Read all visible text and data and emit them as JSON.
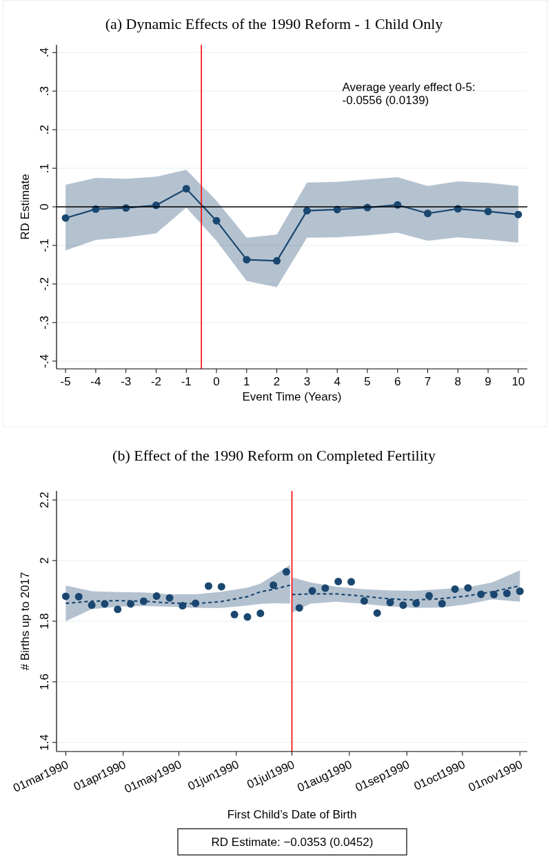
{
  "chart_data": [
    {
      "type": "line",
      "title": "(a) Dynamic Effects of the 1990 Reform - 1 Child Only",
      "xlabel": "Event Time (Years)",
      "ylabel": "RD Estimate",
      "x": [
        -5,
        -4,
        -3,
        -2,
        -1,
        0,
        1,
        2,
        3,
        4,
        5,
        6,
        7,
        8,
        9,
        10
      ],
      "series": [
        {
          "color": "#1a476f",
          "marker": "circle",
          "line_style": "solid",
          "values": [
            -0.029,
            -0.006,
            -0.003,
            0.004,
            0.047,
            -0.036,
            -0.137,
            -0.14,
            -0.01,
            -0.007,
            -0.002,
            0.005,
            -0.017,
            -0.005,
            -0.012,
            -0.02
          ],
          "lower": [
            -0.113,
            -0.086,
            -0.079,
            -0.069,
            -0.002,
            -0.088,
            -0.192,
            -0.208,
            -0.08,
            -0.079,
            -0.074,
            -0.067,
            -0.088,
            -0.079,
            -0.085,
            -0.093
          ],
          "upper": [
            0.057,
            0.075,
            0.073,
            0.078,
            0.096,
            0.016,
            -0.08,
            -0.072,
            0.063,
            0.065,
            0.071,
            0.077,
            0.054,
            0.066,
            0.062,
            0.054
          ]
        }
      ],
      "xlim": [
        -5.3,
        10.3
      ],
      "xticks": [
        -5,
        -4,
        -3,
        -2,
        -1,
        0,
        1,
        2,
        3,
        4,
        5,
        6,
        7,
        8,
        9,
        10
      ],
      "ylim": [
        -0.42,
        0.42
      ],
      "yticks": [
        {
          "value": -0.4,
          "label": "-.4"
        },
        {
          "value": -0.3,
          "label": "-.3"
        },
        {
          "value": -0.2,
          "label": "-.2"
        },
        {
          "value": -0.1,
          "label": "-.1"
        },
        {
          "value": 0,
          "label": "0"
        },
        {
          "value": 0.1,
          "label": ".1"
        },
        {
          "value": 0.2,
          "label": ".2"
        },
        {
          "value": 0.3,
          "label": ".3"
        },
        {
          "value": 0.4,
          "label": ".4"
        }
      ],
      "grid": "y",
      "ref_lines": [
        {
          "axis": "x",
          "value": -0.5,
          "color": "#ff0000"
        },
        {
          "axis": "y",
          "value": 0,
          "color": "#000000"
        }
      ],
      "annotations": [
        "Average yearly effect 0-5:\n-0.0556 (0.0139)"
      ]
    },
    {
      "type": "scatter",
      "title": "(b) Effect of the 1990 Reform on Completed Fertility",
      "xlabel": "First Child’s Date of Birth",
      "ylabel": "# Births up to 2017",
      "series": [
        {
          "color": "#1a476f",
          "marker": "circle",
          "x": [
            "1990-03-01",
            "1990-03-08",
            "1990-03-15",
            "1990-03-22",
            "1990-03-29",
            "1990-04-05",
            "1990-04-12",
            "1990-04-19",
            "1990-04-26",
            "1990-05-03",
            "1990-05-10",
            "1990-05-17",
            "1990-05-24",
            "1990-05-31",
            "1990-06-07",
            "1990-06-14",
            "1990-06-21",
            "1990-06-28",
            "1990-07-05",
            "1990-07-12",
            "1990-07-19",
            "1990-07-26",
            "1990-08-02",
            "1990-08-09",
            "1990-08-16",
            "1990-08-23",
            "1990-08-30",
            "1990-09-06",
            "1990-09-13",
            "1990-09-20",
            "1990-09-27",
            "1990-10-04",
            "1990-10-11",
            "1990-10-18",
            "1990-10-25",
            "1990-11-01"
          ],
          "values": [
            1.882,
            1.881,
            1.853,
            1.857,
            1.839,
            1.857,
            1.866,
            1.883,
            1.877,
            1.851,
            1.859,
            1.916,
            1.914,
            1.822,
            1.814,
            1.826,
            1.919,
            1.963,
            1.844,
            1.9,
            1.909,
            1.931,
            1.93,
            1.867,
            1.827,
            1.862,
            1.853,
            1.859,
            1.884,
            1.858,
            1.906,
            1.91,
            1.889,
            1.888,
            1.892,
            1.899
          ]
        },
        {
          "type": "line",
          "color": "#1a476f",
          "marker": "none",
          "line_style": "dashed",
          "x": [
            "1990-03-01",
            "1990-03-15",
            "1990-03-29",
            "1990-04-12",
            "1990-04-26",
            "1990-05-10",
            "1990-05-24",
            "1990-06-07",
            "1990-06-14",
            "1990-06-21",
            "1990-06-30"
          ],
          "values": [
            1.859,
            1.866,
            1.868,
            1.866,
            1.86,
            1.858,
            1.865,
            1.881,
            1.897,
            1.905,
            1.919
          ],
          "lower": [
            1.8,
            1.84,
            1.848,
            1.85,
            1.848,
            1.844,
            1.844,
            1.852,
            1.857,
            1.859,
            1.858
          ],
          "upper": [
            1.918,
            1.899,
            1.896,
            1.895,
            1.889,
            1.889,
            1.897,
            1.911,
            1.924,
            1.951,
            1.986
          ]
        },
        {
          "type": "line",
          "color": "#1a476f",
          "marker": "none",
          "line_style": "dashed",
          "x": [
            "1990-07-01",
            "1990-07-11",
            "1990-07-25",
            "1990-08-08",
            "1990-08-22",
            "1990-09-05",
            "1990-09-19",
            "1990-10-03",
            "1990-10-17",
            "1990-11-01"
          ],
          "values": [
            1.888,
            1.89,
            1.89,
            1.883,
            1.874,
            1.87,
            1.874,
            1.883,
            1.897,
            1.917
          ],
          "lower": [
            1.828,
            1.858,
            1.864,
            1.858,
            1.849,
            1.844,
            1.845,
            1.855,
            1.872,
            1.864
          ],
          "upper": [
            1.945,
            1.928,
            1.914,
            1.906,
            1.902,
            1.9,
            1.906,
            1.911,
            1.928,
            1.968
          ]
        }
      ],
      "xlim": [
        "1990-02-24",
        "1990-11-05"
      ],
      "xticks": [
        {
          "value": "1990-03-01",
          "label": "01mar1990"
        },
        {
          "value": "1990-04-01",
          "label": "01apr1990"
        },
        {
          "value": "1990-05-01",
          "label": "01may1990"
        },
        {
          "value": "1990-06-01",
          "label": "01jun1990"
        },
        {
          "value": "1990-07-01",
          "label": "01jul1990"
        },
        {
          "value": "1990-08-01",
          "label": "01aug1990"
        },
        {
          "value": "1990-09-01",
          "label": "01sep1990"
        },
        {
          "value": "1990-10-01",
          "label": "01oct1990"
        },
        {
          "value": "1990-11-01",
          "label": "01nov1990"
        }
      ],
      "ylim": [
        1.37,
        2.23
      ],
      "yticks": [
        1.4,
        1.6,
        1.8,
        2,
        2.2
      ],
      "grid": "y",
      "ref_lines": [
        {
          "axis": "x",
          "value": "1990-07-01",
          "color": "#ff0000"
        }
      ],
      "annotations": [
        "RD Estimate: −0.0353 (0.0452)"
      ]
    }
  ]
}
